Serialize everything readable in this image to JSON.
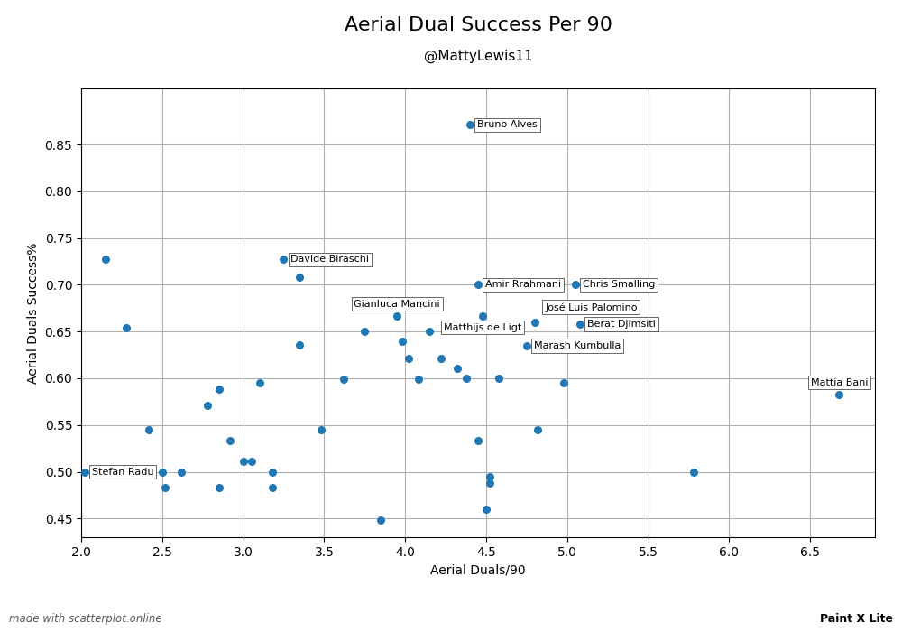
{
  "chart_data": {
    "type": "scatter",
    "title": "Aerial Dual Success Per 90",
    "subtitle": "@MattyLewis11",
    "x_label": "Aerial Duals/90",
    "y_label": "Aerial Duals Success%",
    "x": [
      2.15,
      2.28,
      2.42,
      2.5,
      2.52,
      2.62,
      2.78,
      2.85,
      2.85,
      2.92,
      3.0,
      3.05,
      3.1,
      3.18,
      3.18,
      3.25,
      3.35,
      3.35,
      3.48,
      3.62,
      3.75,
      3.85,
      3.95,
      3.98,
      4.02,
      4.08,
      4.15,
      4.22,
      4.32,
      4.38,
      4.4,
      4.45,
      4.48,
      4.45,
      4.5,
      4.52,
      4.52,
      4.58,
      4.75,
      4.8,
      4.82,
      4.98,
      5.05,
      5.08,
      5.78,
      2.02,
      6.68
    ],
    "values": [
      0.727,
      0.654,
      0.545,
      0.5,
      0.483,
      0.5,
      0.571,
      0.588,
      0.483,
      0.533,
      0.511,
      0.511,
      0.595,
      0.5,
      0.483,
      0.727,
      0.708,
      0.636,
      0.545,
      0.599,
      0.65,
      0.448,
      0.667,
      0.64,
      0.621,
      0.599,
      0.65,
      0.621,
      0.611,
      0.6,
      0.871,
      0.7,
      0.667,
      0.533,
      0.46,
      0.495,
      0.488,
      0.6,
      0.635,
      0.66,
      0.545,
      0.595,
      0.7,
      0.658,
      0.5,
      0.5,
      0.583
    ],
    "labels": [
      null,
      null,
      null,
      null,
      null,
      null,
      null,
      null,
      null,
      null,
      null,
      null,
      null,
      null,
      null,
      "Davide Biraschi",
      null,
      null,
      null,
      null,
      null,
      null,
      "Gianluca Mancini",
      null,
      null,
      null,
      null,
      null,
      null,
      null,
      "Bruno Alves",
      "Amir Rrahmani",
      "Matthijs de Ligt",
      null,
      null,
      null,
      null,
      null,
      "Marash Kumbulla",
      "José Luis Palomino",
      null,
      null,
      "Chris Smalling",
      "Berat Djimsiti",
      null,
      "Stefan Radu",
      "Mattia Bani"
    ],
    "xlim": [
      2.0,
      6.9
    ],
    "ylim": [
      0.43,
      0.91
    ],
    "xticks": [
      2.0,
      2.5,
      3.0,
      3.5,
      4.0,
      4.5,
      5.0,
      5.5,
      6.0,
      6.5
    ],
    "yticks": [
      0.45,
      {
        "value": 0.5,
        "label": "0.50"
      },
      0.55,
      {
        "value": 0.6,
        "label": "0.60"
      },
      0.65,
      {
        "value": 0.7,
        "label": "0.70"
      },
      0.75,
      {
        "value": 0.8,
        "label": "0.80"
      },
      0.85
    ],
    "grid": true,
    "annotations": [
      "made with scatterplot.online",
      "Paint X Lite"
    ]
  }
}
